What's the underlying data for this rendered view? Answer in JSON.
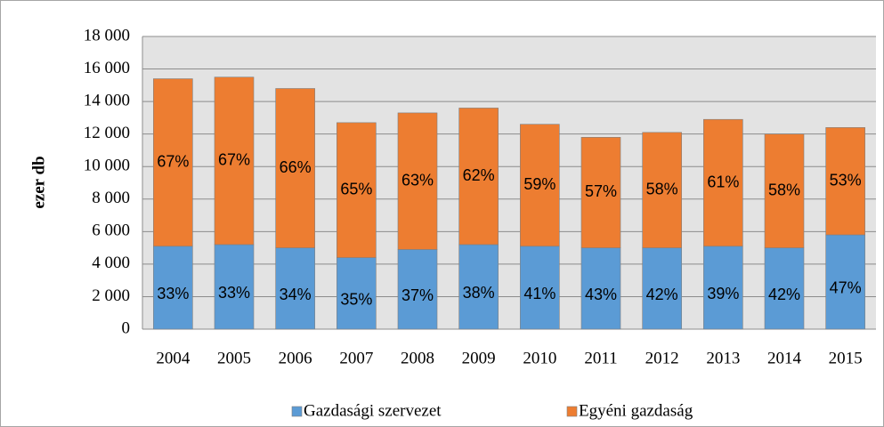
{
  "chart_data": {
    "type": "stacked_bar",
    "y_label": "ezer db",
    "categories": [
      "2004",
      "2005",
      "2006",
      "2007",
      "2008",
      "2009",
      "2010",
      "2011",
      "2012",
      "2013",
      "2014",
      "2015"
    ],
    "series": [
      {
        "name": "Gazdasági szervezet",
        "color": "#5b9bd5",
        "values": [
          5100,
          5200,
          5000,
          4400,
          4900,
          5200,
          5100,
          5000,
          5000,
          5100,
          5000,
          5800
        ],
        "value_labels": [
          "33%",
          "33%",
          "34%",
          "35%",
          "37%",
          "38%",
          "41%",
          "43%",
          "42%",
          "39%",
          "42%",
          "47%"
        ]
      },
      {
        "name": "Egyéni gazdaság",
        "color": "#ed7d31",
        "values": [
          10300,
          10300,
          9800,
          8300,
          8400,
          8400,
          7500,
          6800,
          7100,
          7800,
          7000,
          6600
        ],
        "value_labels": [
          "67%",
          "67%",
          "66%",
          "65%",
          "63%",
          "62%",
          "59%",
          "57%",
          "58%",
          "61%",
          "58%",
          "53%"
        ]
      }
    ],
    "ylim": [
      0,
      18000
    ],
    "yticks": [
      0,
      {
        "value": 2000,
        "label": "2 000"
      },
      {
        "value": 4000,
        "label": "4 000"
      },
      {
        "value": 6000,
        "label": "6 000"
      },
      {
        "value": 8000,
        "label": "8 000"
      },
      {
        "value": 10000,
        "label": "10 000"
      },
      {
        "value": 12000,
        "label": "12 000"
      },
      {
        "value": 14000,
        "label": "14 000"
      },
      {
        "value": 16000,
        "label": "16 000"
      },
      {
        "value": 18000,
        "label": "18 000"
      }
    ],
    "grid": true,
    "legend": "bottom"
  }
}
